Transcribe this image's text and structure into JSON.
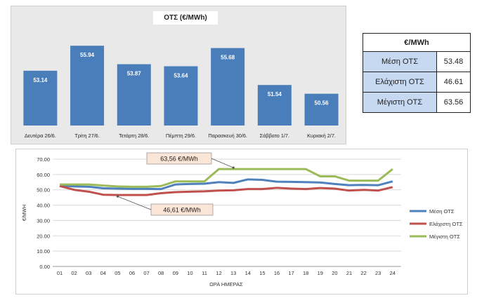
{
  "chart_data": [
    {
      "type": "bar",
      "title": "ΟΤΣ (€/MWh)",
      "categories": [
        "Δευτέρα 26/6.",
        "Τρίτη 27/6.",
        "Τετάρτη 28/6.",
        "Πέμπτη 29/6.",
        "Παρασκευή 30/6.",
        "Σάββατο 1/7.",
        "Κυριακή 2/7."
      ],
      "values": [
        53.14,
        55.94,
        53.87,
        53.64,
        55.68,
        51.54,
        50.56
      ],
      "value_labels": [
        "53.14",
        "55.94",
        "53.87",
        "53.64",
        "55.68",
        "51.54",
        "50.56"
      ],
      "ylim": [
        47,
        58
      ],
      "color": "#4a7ebb",
      "grid": false
    },
    {
      "type": "line",
      "xlabel": "ΩΡΑ ΗΜΕΡΑΣ",
      "ylabel": "€/MWH",
      "x": [
        "01",
        "02",
        "03",
        "04",
        "05",
        "06",
        "07",
        "08",
        "09",
        "10",
        "11",
        "12",
        "13",
        "14",
        "15",
        "16",
        "17",
        "18",
        "19",
        "20",
        "21",
        "22",
        "23",
        "24"
      ],
      "ylim": [
        0,
        70
      ],
      "yticks": [
        "0.00",
        "10.00",
        "20.00",
        "30.00",
        "40.00",
        "50.00",
        "60.00",
        "70.00"
      ],
      "legend_position": "right",
      "grid": true,
      "series": [
        {
          "name": "Μέση ΟΤΣ",
          "color": "#4f81bd",
          "values": [
            52.8,
            52.2,
            52.0,
            51.0,
            50.8,
            50.6,
            50.6,
            50.5,
            53.5,
            53.8,
            54.0,
            55.0,
            54.5,
            56.8,
            56.5,
            55.3,
            55.2,
            55.0,
            54.8,
            53.8,
            53.0,
            53.2,
            53.0,
            55.5
          ]
        },
        {
          "name": "Ελάχιστη ΟΤΣ",
          "color": "#c0504d",
          "values": [
            52.5,
            50.0,
            48.8,
            46.8,
            46.61,
            46.61,
            46.61,
            47.8,
            48.5,
            48.8,
            49.0,
            49.5,
            49.7,
            50.5,
            50.5,
            51.3,
            50.8,
            50.5,
            51.2,
            50.8,
            49.5,
            50.0,
            49.5,
            51.8
          ]
        },
        {
          "name": "Μέγιστη ΟΤΣ",
          "color": "#9bbb59",
          "values": [
            53.5,
            53.5,
            53.5,
            52.8,
            52.2,
            52.0,
            52.0,
            52.5,
            55.5,
            55.5,
            55.5,
            63.56,
            63.56,
            63.56,
            63.56,
            63.56,
            63.56,
            63.56,
            58.8,
            58.8,
            56.0,
            56.0,
            56.0,
            63.5
          ]
        }
      ],
      "annotations": [
        {
          "text": "63,56 €/MWh",
          "series": "Μέγιστη ΟΤΣ",
          "at_x": "13"
        },
        {
          "text": "46,61 €/MWh",
          "series": "Ελάχιστη ΟΤΣ",
          "at_x": "05"
        }
      ]
    }
  ],
  "summary_table": {
    "header": "€/MWh",
    "rows": [
      {
        "label": "Μέση ΟΤΣ",
        "value": "53.48"
      },
      {
        "label": "Ελάχιστη ΟΤΣ",
        "value": "46.61"
      },
      {
        "label": "Μέγιστη ΟΤΣ",
        "value": "63.56"
      }
    ]
  }
}
